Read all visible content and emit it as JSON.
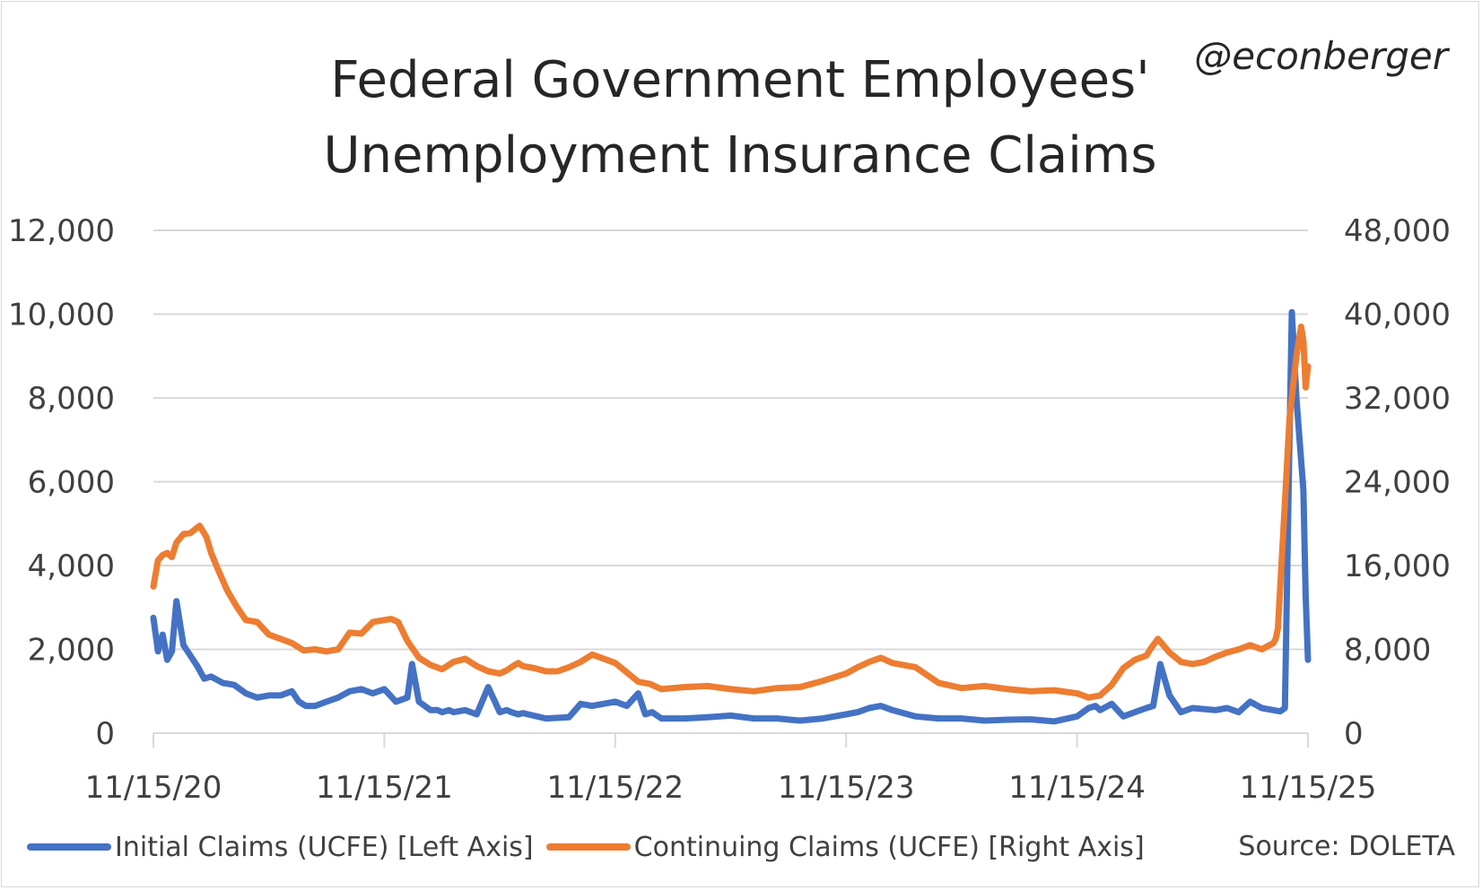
{
  "handle": "@econberger",
  "source": "Source: DOLETA",
  "chart_data": {
    "type": "line",
    "title_lines": [
      "Federal Government Employees'",
      "Unemployment Insurance Claims"
    ],
    "x_ticks": [
      "11/15/20",
      "11/15/21",
      "11/15/22",
      "11/15/23",
      "11/15/24",
      "11/15/25"
    ],
    "xlim_years": [
      0,
      5
    ],
    "y_left": {
      "ticks": [
        "0",
        "2,000",
        "4,000",
        "6,000",
        "8,000",
        "10,000",
        "12,000"
      ],
      "ylim": [
        0,
        12000
      ]
    },
    "y_right": {
      "ticks": [
        "0",
        "8,000",
        "16,000",
        "24,000",
        "32,000",
        "40,000",
        "48,000"
      ],
      "ylim": [
        0,
        48000
      ]
    },
    "grid": true,
    "legend_position": "bottom",
    "series": [
      {
        "name": "Initial Claims (UCFE) [Left Axis]",
        "axis": "left",
        "color": "#4472C4",
        "x": [
          0.0,
          0.02,
          0.04,
          0.06,
          0.08,
          0.1,
          0.13,
          0.16,
          0.19,
          0.22,
          0.25,
          0.3,
          0.35,
          0.4,
          0.45,
          0.5,
          0.55,
          0.6,
          0.63,
          0.66,
          0.7,
          0.75,
          0.8,
          0.85,
          0.9,
          0.95,
          1.0,
          1.05,
          1.1,
          1.12,
          1.15,
          1.2,
          1.23,
          1.25,
          1.28,
          1.3,
          1.35,
          1.4,
          1.45,
          1.5,
          1.53,
          1.55,
          1.58,
          1.6,
          1.7,
          1.8,
          1.85,
          1.9,
          2.0,
          2.05,
          2.1,
          2.13,
          2.16,
          2.2,
          2.3,
          2.4,
          2.5,
          2.6,
          2.7,
          2.8,
          2.9,
          3.0,
          3.05,
          3.1,
          3.15,
          3.2,
          3.3,
          3.4,
          3.5,
          3.6,
          3.7,
          3.8,
          3.9,
          4.0,
          4.05,
          4.08,
          4.1,
          4.15,
          4.2,
          4.3,
          4.33,
          4.36,
          4.4,
          4.45,
          4.5,
          4.6,
          4.65,
          4.7,
          4.75,
          4.8,
          4.85,
          4.88,
          4.9,
          4.92,
          4.93,
          4.95,
          4.98,
          4.99,
          5.0
        ],
        "values": [
          2750,
          1950,
          2350,
          1750,
          1950,
          3150,
          2100,
          1850,
          1600,
          1300,
          1350,
          1200,
          1150,
          950,
          850,
          900,
          900,
          1000,
          750,
          650,
          650,
          750,
          850,
          1000,
          1050,
          950,
          1050,
          750,
          850,
          1650,
          750,
          550,
          550,
          500,
          550,
          500,
          550,
          450,
          1100,
          500,
          550,
          500,
          450,
          480,
          350,
          380,
          700,
          650,
          750,
          650,
          950,
          450,
          500,
          350,
          350,
          380,
          420,
          350,
          350,
          300,
          350,
          450,
          500,
          600,
          650,
          550,
          400,
          350,
          350,
          300,
          320,
          330,
          280,
          400,
          600,
          650,
          550,
          700,
          400,
          600,
          650,
          1650,
          900,
          500,
          600,
          550,
          600,
          500,
          750,
          600,
          550,
          520,
          600,
          7000,
          10050,
          8000,
          5800,
          3300,
          1750
        ]
      },
      {
        "name": "Continuing Claims (UCFE) [Right Axis]",
        "axis": "right",
        "color": "#ED7D31",
        "x": [
          0.0,
          0.02,
          0.04,
          0.06,
          0.08,
          0.1,
          0.13,
          0.16,
          0.2,
          0.23,
          0.25,
          0.28,
          0.32,
          0.36,
          0.4,
          0.45,
          0.5,
          0.55,
          0.6,
          0.65,
          0.7,
          0.75,
          0.8,
          0.85,
          0.9,
          0.95,
          1.0,
          1.03,
          1.06,
          1.1,
          1.15,
          1.2,
          1.25,
          1.3,
          1.35,
          1.4,
          1.45,
          1.5,
          1.53,
          1.55,
          1.58,
          1.6,
          1.65,
          1.7,
          1.75,
          1.8,
          1.85,
          1.9,
          2.0,
          2.05,
          2.1,
          2.15,
          2.2,
          2.3,
          2.4,
          2.5,
          2.6,
          2.7,
          2.8,
          2.9,
          3.0,
          3.05,
          3.1,
          3.15,
          3.2,
          3.3,
          3.4,
          3.5,
          3.6,
          3.7,
          3.8,
          3.9,
          4.0,
          4.05,
          4.1,
          4.15,
          4.2,
          4.25,
          4.3,
          4.32,
          4.35,
          4.4,
          4.45,
          4.5,
          4.55,
          4.6,
          4.65,
          4.7,
          4.75,
          4.8,
          4.85,
          4.86,
          4.87,
          4.88,
          4.9,
          4.92,
          4.95,
          4.97,
          4.98,
          4.99,
          5.0
        ],
        "values": [
          14000,
          16500,
          17000,
          17200,
          16800,
          18200,
          19000,
          19100,
          19800,
          18700,
          17200,
          15600,
          13600,
          12100,
          10800,
          10600,
          9400,
          9000,
          8600,
          7900,
          8000,
          7800,
          8000,
          9600,
          9500,
          10600,
          10800,
          10900,
          10600,
          8800,
          7200,
          6500,
          6100,
          6800,
          7100,
          6400,
          5900,
          5700,
          6000,
          6300,
          6700,
          6400,
          6200,
          5900,
          5900,
          6300,
          6800,
          7500,
          6700,
          5800,
          4900,
          4700,
          4200,
          4400,
          4500,
          4200,
          4000,
          4300,
          4400,
          5000,
          5700,
          6300,
          6800,
          7200,
          6700,
          6300,
          4800,
          4300,
          4500,
          4200,
          4000,
          4100,
          3800,
          3400,
          3600,
          4600,
          6200,
          7000,
          7400,
          8100,
          9000,
          7700,
          6800,
          6600,
          6800,
          7300,
          7700,
          8000,
          8400,
          8000,
          8600,
          9000,
          10000,
          14000,
          22000,
          30000,
          36000,
          38800,
          37500,
          33000,
          35000
        ]
      }
    ]
  }
}
